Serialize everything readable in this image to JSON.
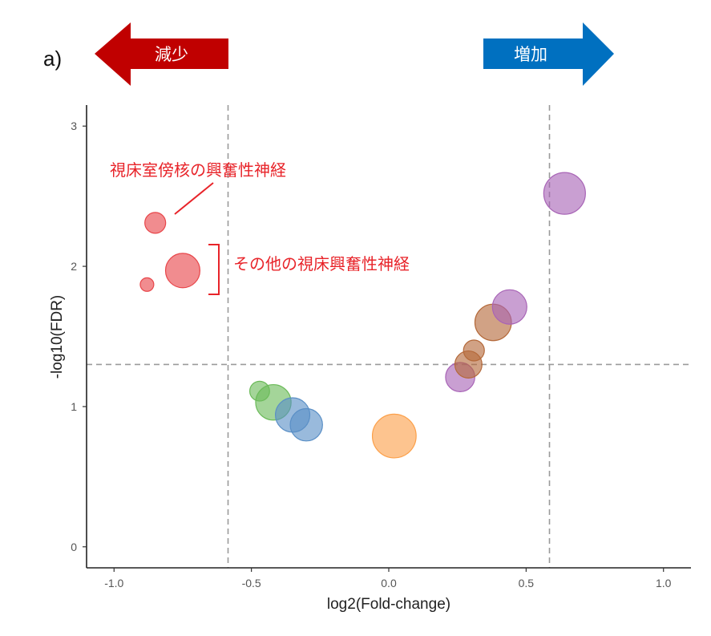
{
  "panel_label": "a)",
  "legend_arrows": {
    "decrease": {
      "label": "減少",
      "color": "#c00000"
    },
    "increase": {
      "label": "増加",
      "color": "#0070c0"
    }
  },
  "annotations": {
    "pvn": "視床室傍核の興奮性神経",
    "other": "その他の視床興奮性神経"
  },
  "chart_data": {
    "type": "scatter",
    "title": "",
    "xlabel": "log2(Fold-change)",
    "ylabel": "-log10(FDR)",
    "xlim": [
      -1.1,
      1.1
    ],
    "ylim": [
      -0.15,
      3.15
    ],
    "x_ticks": [
      -1.0,
      -0.5,
      0.0,
      0.5,
      1.0
    ],
    "x_tick_labels": [
      "-1.0",
      "-0.5",
      "0.0",
      "0.5",
      "1.0"
    ],
    "y_ticks": [
      0,
      1,
      2,
      3
    ],
    "y_tick_labels": [
      "0",
      "1",
      "2",
      "3"
    ],
    "threshold_lines": {
      "x": [
        -0.585,
        0.585
      ],
      "y": 1.3
    },
    "colors": {
      "red": "#e8464a",
      "green": "#6cbb5a",
      "blue": "#5a8fc6",
      "orange": "#fca04a",
      "brown": "#b4693a",
      "purple": "#a864b6"
    },
    "points": [
      {
        "x": -0.85,
        "y": 2.31,
        "size": 1.0,
        "color": "red"
      },
      {
        "x": -0.75,
        "y": 1.97,
        "size": 1.65,
        "color": "red"
      },
      {
        "x": -0.88,
        "y": 1.87,
        "size": 0.65,
        "color": "red"
      },
      {
        "x": -0.47,
        "y": 1.11,
        "size": 0.95,
        "color": "green"
      },
      {
        "x": -0.42,
        "y": 1.03,
        "size": 1.7,
        "color": "green"
      },
      {
        "x": -0.35,
        "y": 0.94,
        "size": 1.65,
        "color": "blue"
      },
      {
        "x": -0.3,
        "y": 0.87,
        "size": 1.55,
        "color": "blue"
      },
      {
        "x": 0.02,
        "y": 0.79,
        "size": 2.1,
        "color": "orange"
      },
      {
        "x": 0.26,
        "y": 1.21,
        "size": 1.4,
        "color": "purple"
      },
      {
        "x": 0.29,
        "y": 1.3,
        "size": 1.3,
        "color": "brown"
      },
      {
        "x": 0.31,
        "y": 1.4,
        "size": 1.0,
        "color": "brown"
      },
      {
        "x": 0.38,
        "y": 1.6,
        "size": 1.75,
        "color": "brown"
      },
      {
        "x": 0.44,
        "y": 1.71,
        "size": 1.65,
        "color": "purple"
      },
      {
        "x": 0.64,
        "y": 2.52,
        "size": 2.0,
        "color": "purple"
      }
    ]
  }
}
